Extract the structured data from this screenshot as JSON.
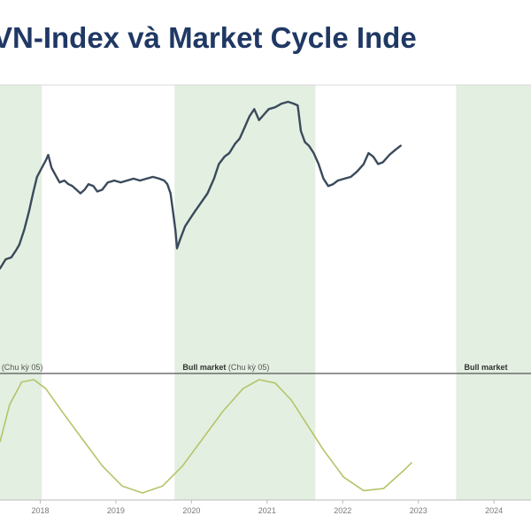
{
  "title": "VN-Index và Market Cycle Inde",
  "colors": {
    "title": "#1f3864",
    "index_line": "#3a4a5c",
    "cycle_line": "#b5c46a",
    "bull_band": "#e3efe0"
  },
  "chart_data": [
    {
      "type": "line",
      "title": "VN-Index và Market Cycle Inde",
      "x_range": [
        2017.78,
        2024.38
      ],
      "y_range": [
        0,
        100
      ],
      "grid": false,
      "bull_bands": [
        {
          "from": 2017.78,
          "to": 2018.3
        },
        {
          "from": 2019.95,
          "to": 2021.7
        },
        {
          "from": 2023.45,
          "to": 2024.38
        }
      ],
      "regime_labels": [
        {
          "x": 2017.8,
          "bold": "",
          "text": "(Chu kỳ 05)"
        },
        {
          "x": 2020.05,
          "bold": "Bull market",
          "text": "(Chu kỳ 05)"
        },
        {
          "x": 2023.55,
          "bold": "Bull market",
          "text": ""
        }
      ],
      "x_ticks": [
        "2018",
        "2019",
        "2020",
        "2021",
        "2022",
        "2023",
        "2024"
      ],
      "x_tick_values": [
        2018.28,
        2019.22,
        2020.16,
        2021.1,
        2022.04,
        2022.98,
        2023.92
      ],
      "series": [
        {
          "values": [
            [
              2017.78,
              9
            ],
            [
              2017.85,
              14
            ],
            [
              2017.92,
              15
            ],
            [
              2017.98,
              19
            ],
            [
              2018.02,
              22
            ],
            [
              2018.08,
              30
            ],
            [
              2018.14,
              40
            ],
            [
              2018.19,
              50
            ],
            [
              2018.24,
              59
            ],
            [
              2018.3,
              64
            ],
            [
              2018.35,
              68
            ],
            [
              2018.38,
              71
            ],
            [
              2018.42,
              64
            ],
            [
              2018.47,
              60
            ],
            [
              2018.52,
              56
            ],
            [
              2018.58,
              57
            ],
            [
              2018.63,
              55
            ],
            [
              2018.68,
              54
            ],
            [
              2018.73,
              52
            ],
            [
              2018.78,
              50
            ],
            [
              2018.83,
              52
            ],
            [
              2018.88,
              55
            ],
            [
              2018.94,
              54
            ],
            [
              2018.99,
              51
            ],
            [
              2019.05,
              52
            ],
            [
              2019.12,
              56
            ],
            [
              2019.2,
              57
            ],
            [
              2019.28,
              56
            ],
            [
              2019.36,
              57
            ],
            [
              2019.44,
              58
            ],
            [
              2019.52,
              57
            ],
            [
              2019.6,
              58
            ],
            [
              2019.68,
              59
            ],
            [
              2019.76,
              58
            ],
            [
              2019.82,
              57
            ],
            [
              2019.86,
              55
            ],
            [
              2019.9,
              50
            ],
            [
              2019.93,
              40
            ],
            [
              2019.96,
              30
            ],
            [
              2019.98,
              20
            ],
            [
              2020.02,
              25
            ],
            [
              2020.08,
              32
            ],
            [
              2020.14,
              36
            ],
            [
              2020.2,
              40
            ],
            [
              2020.28,
              45
            ],
            [
              2020.36,
              50
            ],
            [
              2020.44,
              58
            ],
            [
              2020.5,
              66
            ],
            [
              2020.57,
              70
            ],
            [
              2020.63,
              72
            ],
            [
              2020.7,
              77
            ],
            [
              2020.76,
              80
            ],
            [
              2020.82,
              86
            ],
            [
              2020.88,
              92
            ],
            [
              2020.94,
              96
            ],
            [
              2021.0,
              90
            ],
            [
              2021.06,
              93
            ],
            [
              2021.12,
              96
            ],
            [
              2021.2,
              97
            ],
            [
              2021.28,
              99
            ],
            [
              2021.36,
              100
            ],
            [
              2021.43,
              99
            ],
            [
              2021.48,
              98
            ],
            [
              2021.52,
              84
            ],
            [
              2021.57,
              78
            ],
            [
              2021.62,
              76
            ],
            [
              2021.68,
              72
            ],
            [
              2021.74,
              66
            ],
            [
              2021.8,
              58
            ],
            [
              2021.86,
              54
            ],
            [
              2021.92,
              55
            ],
            [
              2021.98,
              57
            ],
            [
              2022.06,
              58
            ],
            [
              2022.14,
              59
            ],
            [
              2022.22,
              62
            ],
            [
              2022.3,
              66
            ],
            [
              2022.36,
              72
            ],
            [
              2022.42,
              70
            ],
            [
              2022.48,
              66
            ],
            [
              2022.54,
              67
            ],
            [
              2022.62,
              71
            ],
            [
              2022.7,
              74
            ],
            [
              2022.76,
              76
            ]
          ]
        },
        {
          "values": [
            [
              2017.78,
              45
            ],
            [
              2017.9,
              78
            ],
            [
              2018.05,
              98
            ],
            [
              2018.2,
              100
            ],
            [
              2018.35,
              92
            ],
            [
              2018.55,
              72
            ],
            [
              2018.8,
              48
            ],
            [
              2019.05,
              24
            ],
            [
              2019.3,
              6
            ],
            [
              2019.55,
              0
            ],
            [
              2019.8,
              6
            ],
            [
              2020.05,
              24
            ],
            [
              2020.3,
              48
            ],
            [
              2020.55,
              72
            ],
            [
              2020.8,
              92
            ],
            [
              2021.0,
              100
            ],
            [
              2021.2,
              97
            ],
            [
              2021.4,
              82
            ],
            [
              2021.6,
              60
            ],
            [
              2021.8,
              38
            ],
            [
              2022.05,
              14
            ],
            [
              2022.3,
              2
            ],
            [
              2022.55,
              4
            ],
            [
              2022.8,
              20
            ],
            [
              2022.9,
              27
            ]
          ]
        }
      ]
    }
  ]
}
